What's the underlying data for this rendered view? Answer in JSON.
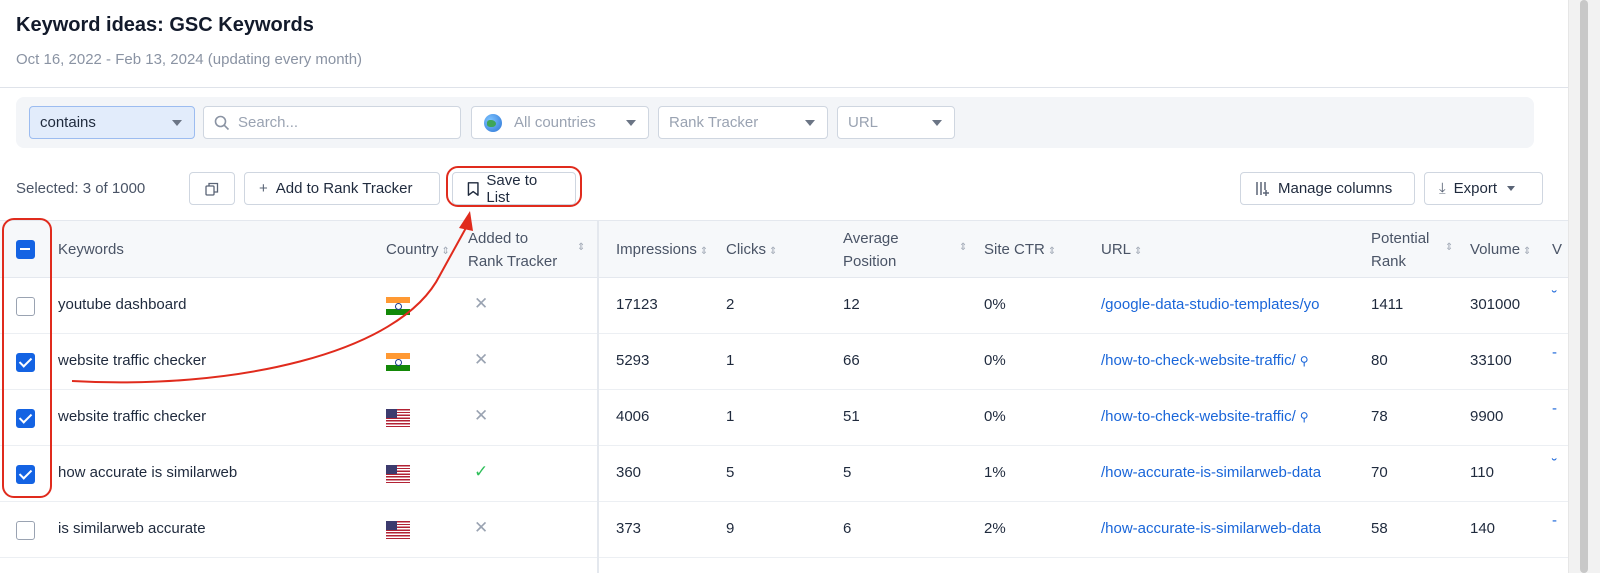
{
  "header": {
    "title": "Keyword ideas: GSC Keywords",
    "subtitle": "Oct 16, 2022 - Feb 13, 2024 (updating every month)"
  },
  "filters": {
    "match_value": "contains",
    "search_placeholder": "Search...",
    "countries": "All countries",
    "rank_tracker": "Rank Tracker",
    "url": "URL"
  },
  "toolbar": {
    "selected": "Selected: 3 of 1000",
    "add_to_rank_tracker": "Add to Rank Tracker",
    "save_to_list": "Save to List",
    "manage_columns": "Manage columns",
    "export": "Export"
  },
  "columns": {
    "keywords": "Keywords",
    "country": "Country",
    "added_line1": "Added to",
    "added_line2": "Rank Tracker",
    "impressions": "Impressions",
    "clicks": "Clicks",
    "avg_line1": "Average",
    "avg_line2": "Position",
    "site_ctr": "Site CTR",
    "url": "URL",
    "potential_line1": "Potential",
    "potential_line2": "Rank",
    "volume": "Volume",
    "cut_off": "V"
  },
  "rows": [
    {
      "keyword": "youtube dashboard",
      "country": "india-flag-icon",
      "added": "✕",
      "impressions": "17123",
      "clicks": "2",
      "position": "12",
      "ctr": "0%",
      "url": "/google-data-studio-templates/yo",
      "potential": "1411",
      "volume": "301000",
      "edge": "˘",
      "selected": false
    },
    {
      "keyword": "website traffic checker",
      "country": "india-flag-icon",
      "added": "✕",
      "impressions": "5293",
      "clicks": "1",
      "position": "66",
      "ctr": "0%",
      "url": "/how-to-check-website-traffic/",
      "potential": "80",
      "volume": "33100",
      "edge": "-",
      "selected": true
    },
    {
      "keyword": "website traffic checker",
      "country": "us-flag-icon",
      "added": "✕",
      "impressions": "4006",
      "clicks": "1",
      "position": "51",
      "ctr": "0%",
      "url": "/how-to-check-website-traffic/",
      "potential": "78",
      "volume": "9900",
      "edge": "-",
      "selected": true
    },
    {
      "keyword": "how accurate is similarweb",
      "country": "us-flag-icon",
      "added": "✓",
      "impressions": "360",
      "clicks": "5",
      "position": "5",
      "ctr": "1%",
      "url": "/how-accurate-is-similarweb-data",
      "potential": "70",
      "volume": "110",
      "edge": "˘",
      "selected": true
    },
    {
      "keyword": "is similarweb accurate",
      "country": "us-flag-icon",
      "added": "✕",
      "impressions": "373",
      "clicks": "9",
      "position": "6",
      "ctr": "2%",
      "url": "/how-accurate-is-similarweb-data",
      "potential": "58",
      "volume": "140",
      "edge": "-",
      "selected": false
    }
  ],
  "colors": {
    "accent": "#1463e3",
    "annotation": "#e02b1d",
    "link": "#1a66d9"
  }
}
